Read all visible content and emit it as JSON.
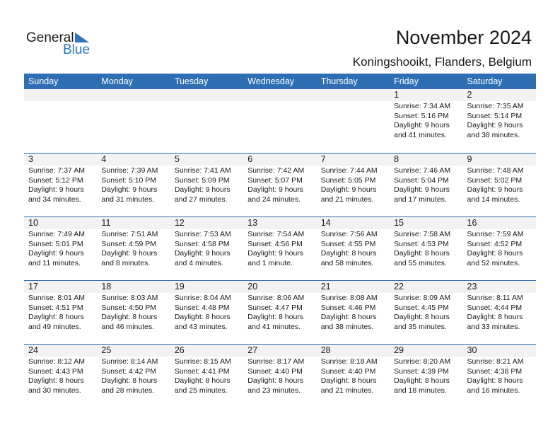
{
  "logo": {
    "text1": "General",
    "text2": "Blue"
  },
  "title": "November 2024",
  "location": "Koningshooikt, Flanders, Belgium",
  "colors": {
    "header": "#2e6fb3",
    "band": "#f2f2f2",
    "logo_blue": "#2a78c2"
  },
  "days": [
    "Sunday",
    "Monday",
    "Tuesday",
    "Wednesday",
    "Thursday",
    "Friday",
    "Saturday"
  ],
  "weeks": [
    [
      null,
      null,
      null,
      null,
      null,
      {
        "d": "1",
        "sr": "Sunrise: 7:34 AM",
        "ss": "Sunset: 5:16 PM",
        "dl": "Daylight: 9 hours",
        "dm": "and 41 minutes."
      },
      {
        "d": "2",
        "sr": "Sunrise: 7:35 AM",
        "ss": "Sunset: 5:14 PM",
        "dl": "Daylight: 9 hours",
        "dm": "and 38 minutes."
      }
    ],
    [
      {
        "d": "3",
        "sr": "Sunrise: 7:37 AM",
        "ss": "Sunset: 5:12 PM",
        "dl": "Daylight: 9 hours",
        "dm": "and 34 minutes."
      },
      {
        "d": "4",
        "sr": "Sunrise: 7:39 AM",
        "ss": "Sunset: 5:10 PM",
        "dl": "Daylight: 9 hours",
        "dm": "and 31 minutes."
      },
      {
        "d": "5",
        "sr": "Sunrise: 7:41 AM",
        "ss": "Sunset: 5:09 PM",
        "dl": "Daylight: 9 hours",
        "dm": "and 27 minutes."
      },
      {
        "d": "6",
        "sr": "Sunrise: 7:42 AM",
        "ss": "Sunset: 5:07 PM",
        "dl": "Daylight: 9 hours",
        "dm": "and 24 minutes."
      },
      {
        "d": "7",
        "sr": "Sunrise: 7:44 AM",
        "ss": "Sunset: 5:05 PM",
        "dl": "Daylight: 9 hours",
        "dm": "and 21 minutes."
      },
      {
        "d": "8",
        "sr": "Sunrise: 7:46 AM",
        "ss": "Sunset: 5:04 PM",
        "dl": "Daylight: 9 hours",
        "dm": "and 17 minutes."
      },
      {
        "d": "9",
        "sr": "Sunrise: 7:48 AM",
        "ss": "Sunset: 5:02 PM",
        "dl": "Daylight: 9 hours",
        "dm": "and 14 minutes."
      }
    ],
    [
      {
        "d": "10",
        "sr": "Sunrise: 7:49 AM",
        "ss": "Sunset: 5:01 PM",
        "dl": "Daylight: 9 hours",
        "dm": "and 11 minutes."
      },
      {
        "d": "11",
        "sr": "Sunrise: 7:51 AM",
        "ss": "Sunset: 4:59 PM",
        "dl": "Daylight: 9 hours",
        "dm": "and 8 minutes."
      },
      {
        "d": "12",
        "sr": "Sunrise: 7:53 AM",
        "ss": "Sunset: 4:58 PM",
        "dl": "Daylight: 9 hours",
        "dm": "and 4 minutes."
      },
      {
        "d": "13",
        "sr": "Sunrise: 7:54 AM",
        "ss": "Sunset: 4:56 PM",
        "dl": "Daylight: 9 hours",
        "dm": "and 1 minute."
      },
      {
        "d": "14",
        "sr": "Sunrise: 7:56 AM",
        "ss": "Sunset: 4:55 PM",
        "dl": "Daylight: 8 hours",
        "dm": "and 58 minutes."
      },
      {
        "d": "15",
        "sr": "Sunrise: 7:58 AM",
        "ss": "Sunset: 4:53 PM",
        "dl": "Daylight: 8 hours",
        "dm": "and 55 minutes."
      },
      {
        "d": "16",
        "sr": "Sunrise: 7:59 AM",
        "ss": "Sunset: 4:52 PM",
        "dl": "Daylight: 8 hours",
        "dm": "and 52 minutes."
      }
    ],
    [
      {
        "d": "17",
        "sr": "Sunrise: 8:01 AM",
        "ss": "Sunset: 4:51 PM",
        "dl": "Daylight: 8 hours",
        "dm": "and 49 minutes."
      },
      {
        "d": "18",
        "sr": "Sunrise: 8:03 AM",
        "ss": "Sunset: 4:50 PM",
        "dl": "Daylight: 8 hours",
        "dm": "and 46 minutes."
      },
      {
        "d": "19",
        "sr": "Sunrise: 8:04 AM",
        "ss": "Sunset: 4:48 PM",
        "dl": "Daylight: 8 hours",
        "dm": "and 43 minutes."
      },
      {
        "d": "20",
        "sr": "Sunrise: 8:06 AM",
        "ss": "Sunset: 4:47 PM",
        "dl": "Daylight: 8 hours",
        "dm": "and 41 minutes."
      },
      {
        "d": "21",
        "sr": "Sunrise: 8:08 AM",
        "ss": "Sunset: 4:46 PM",
        "dl": "Daylight: 8 hours",
        "dm": "and 38 minutes."
      },
      {
        "d": "22",
        "sr": "Sunrise: 8:09 AM",
        "ss": "Sunset: 4:45 PM",
        "dl": "Daylight: 8 hours",
        "dm": "and 35 minutes."
      },
      {
        "d": "23",
        "sr": "Sunrise: 8:11 AM",
        "ss": "Sunset: 4:44 PM",
        "dl": "Daylight: 8 hours",
        "dm": "and 33 minutes."
      }
    ],
    [
      {
        "d": "24",
        "sr": "Sunrise: 8:12 AM",
        "ss": "Sunset: 4:43 PM",
        "dl": "Daylight: 8 hours",
        "dm": "and 30 minutes."
      },
      {
        "d": "25",
        "sr": "Sunrise: 8:14 AM",
        "ss": "Sunset: 4:42 PM",
        "dl": "Daylight: 8 hours",
        "dm": "and 28 minutes."
      },
      {
        "d": "26",
        "sr": "Sunrise: 8:15 AM",
        "ss": "Sunset: 4:41 PM",
        "dl": "Daylight: 8 hours",
        "dm": "and 25 minutes."
      },
      {
        "d": "27",
        "sr": "Sunrise: 8:17 AM",
        "ss": "Sunset: 4:40 PM",
        "dl": "Daylight: 8 hours",
        "dm": "and 23 minutes."
      },
      {
        "d": "28",
        "sr": "Sunrise: 8:18 AM",
        "ss": "Sunset: 4:40 PM",
        "dl": "Daylight: 8 hours",
        "dm": "and 21 minutes."
      },
      {
        "d": "29",
        "sr": "Sunrise: 8:20 AM",
        "ss": "Sunset: 4:39 PM",
        "dl": "Daylight: 8 hours",
        "dm": "and 18 minutes."
      },
      {
        "d": "30",
        "sr": "Sunrise: 8:21 AM",
        "ss": "Sunset: 4:38 PM",
        "dl": "Daylight: 8 hours",
        "dm": "and 16 minutes."
      }
    ]
  ]
}
